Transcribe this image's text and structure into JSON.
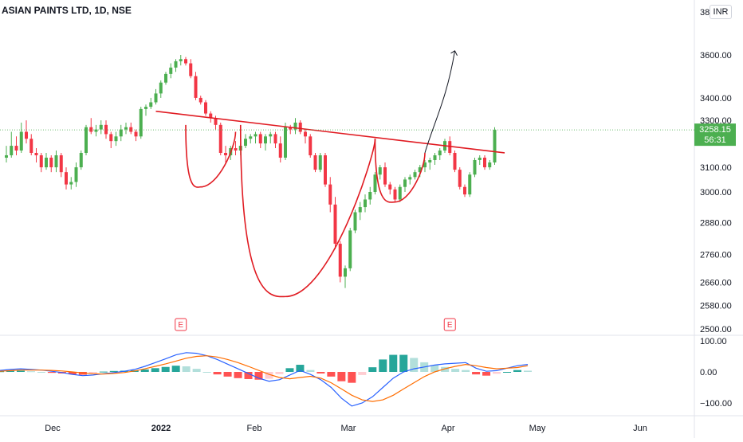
{
  "header": {
    "title": "ASIAN PAINTS LTD, 1D, NSE",
    "currency": "INR"
  },
  "price_badge": {
    "price": "3258.15",
    "countdown": "56:31",
    "color": "#4caf50"
  },
  "earnings_marker": "E",
  "colors": {
    "up": "#4caf50",
    "down": "#f23645",
    "pattern": "#e01b22",
    "macd": "#2962ff",
    "signal": "#ff6d00"
  },
  "chart_data": [
    {
      "type": "candlestick",
      "title": "ASIAN PAINTS LTD, 1D, NSE",
      "x_labels": [
        "Dec",
        "2022",
        "Feb",
        "Mar",
        "Apr",
        "May",
        "Jun"
      ],
      "y_ticks": [
        2500,
        2580,
        2660,
        2760,
        2880,
        3000,
        3100,
        3300,
        3400,
        3600
      ],
      "y_tick_labels": [
        "2500.00",
        "2580.00",
        "2660.00",
        "2760.00",
        "2880.00",
        "3000.00",
        "3100.00",
        "3300.00",
        "3400.00",
        "3600.00"
      ],
      "y_scale": "log",
      "ylim": [
        2480,
        3830
      ],
      "candles": [
        [
          3140,
          3190,
          3120,
          3150
        ],
        [
          3150,
          3250,
          3140,
          3190
        ],
        [
          3190,
          3230,
          3150,
          3170
        ],
        [
          3170,
          3290,
          3160,
          3250
        ],
        [
          3250,
          3300,
          3200,
          3220
        ],
        [
          3220,
          3240,
          3150,
          3160
        ],
        [
          3160,
          3180,
          3120,
          3150
        ],
        [
          3150,
          3160,
          3080,
          3100
        ],
        [
          3100,
          3160,
          3090,
          3140
        ],
        [
          3140,
          3150,
          3080,
          3100
        ],
        [
          3100,
          3170,
          3080,
          3150
        ],
        [
          3150,
          3160,
          3060,
          3080
        ],
        [
          3080,
          3100,
          3010,
          3030
        ],
        [
          3030,
          3060,
          3010,
          3040
        ],
        [
          3040,
          3120,
          3020,
          3100
        ],
        [
          3100,
          3170,
          3090,
          3160
        ],
        [
          3160,
          3280,
          3150,
          3270
        ],
        [
          3270,
          3310,
          3240,
          3250
        ],
        [
          3250,
          3280,
          3230,
          3260
        ],
        [
          3260,
          3300,
          3240,
          3280
        ],
        [
          3280,
          3300,
          3220,
          3240
        ],
        [
          3240,
          3250,
          3180,
          3210
        ],
        [
          3210,
          3250,
          3190,
          3230
        ],
        [
          3230,
          3280,
          3210,
          3260
        ],
        [
          3260,
          3290,
          3240,
          3270
        ],
        [
          3270,
          3290,
          3240,
          3250
        ],
        [
          3250,
          3260,
          3210,
          3230
        ],
        [
          3230,
          3360,
          3220,
          3350
        ],
        [
          3350,
          3370,
          3320,
          3360
        ],
        [
          3360,
          3400,
          3350,
          3380
        ],
        [
          3380,
          3440,
          3370,
          3420
        ],
        [
          3420,
          3480,
          3400,
          3470
        ],
        [
          3470,
          3520,
          3460,
          3510
        ],
        [
          3510,
          3560,
          3490,
          3540
        ],
        [
          3540,
          3580,
          3520,
          3570
        ],
        [
          3570,
          3600,
          3550,
          3580
        ],
        [
          3580,
          3590,
          3550,
          3560
        ],
        [
          3560,
          3580,
          3490,
          3500
        ],
        [
          3500,
          3520,
          3390,
          3400
        ],
        [
          3400,
          3410,
          3370,
          3380
        ],
        [
          3380,
          3390,
          3320,
          3330
        ],
        [
          3330,
          3340,
          3290,
          3310
        ],
        [
          3310,
          3320,
          3260,
          3280
        ],
        [
          3280,
          3290,
          3150,
          3160
        ],
        [
          3160,
          3190,
          3120,
          3150
        ],
        [
          3150,
          3190,
          3130,
          3180
        ],
        [
          3180,
          3210,
          3150,
          3170
        ],
        [
          3170,
          3200,
          3150,
          3190
        ],
        [
          3190,
          3240,
          3180,
          3220
        ],
        [
          3220,
          3240,
          3200,
          3230
        ],
        [
          3230,
          3250,
          3200,
          3240
        ],
        [
          3240,
          3250,
          3180,
          3200
        ],
        [
          3200,
          3240,
          3170,
          3230
        ],
        [
          3230,
          3250,
          3200,
          3240
        ],
        [
          3240,
          3250,
          3180,
          3200
        ],
        [
          3200,
          3230,
          3120,
          3140
        ],
        [
          3140,
          3290,
          3130,
          3270
        ],
        [
          3270,
          3280,
          3240,
          3260
        ],
        [
          3260,
          3310,
          3240,
          3290
        ],
        [
          3290,
          3300,
          3240,
          3250
        ],
        [
          3250,
          3260,
          3200,
          3230
        ],
        [
          3230,
          3240,
          3140,
          3150
        ],
        [
          3150,
          3160,
          3080,
          3090
        ],
        [
          3090,
          3160,
          3080,
          3150
        ],
        [
          3150,
          3160,
          3020,
          3030
        ],
        [
          3030,
          3060,
          2920,
          2950
        ],
        [
          2950,
          2980,
          2780,
          2800
        ],
        [
          2800,
          2810,
          2660,
          2680
        ],
        [
          2680,
          2720,
          2640,
          2710
        ],
        [
          2710,
          2860,
          2700,
          2850
        ],
        [
          2850,
          2930,
          2840,
          2920
        ],
        [
          2920,
          2960,
          2890,
          2940
        ],
        [
          2940,
          2990,
          2920,
          2970
        ],
        [
          2970,
          3020,
          2950,
          3000
        ],
        [
          3000,
          3080,
          2990,
          3070
        ],
        [
          3070,
          3110,
          3050,
          3100
        ],
        [
          3100,
          3120,
          3020,
          3030
        ],
        [
          3030,
          3040,
          2990,
          3010
        ],
        [
          3010,
          3020,
          2960,
          2970
        ],
        [
          2970,
          3030,
          2960,
          3020
        ],
        [
          3020,
          3060,
          3000,
          3050
        ],
        [
          3050,
          3070,
          3030,
          3060
        ],
        [
          3060,
          3090,
          3050,
          3080
        ],
        [
          3080,
          3110,
          3060,
          3100
        ],
        [
          3100,
          3130,
          3080,
          3120
        ],
        [
          3120,
          3140,
          3090,
          3130
        ],
        [
          3130,
          3160,
          3110,
          3150
        ],
        [
          3150,
          3180,
          3130,
          3170
        ],
        [
          3170,
          3220,
          3160,
          3210
        ],
        [
          3210,
          3230,
          3150,
          3160
        ],
        [
          3160,
          3170,
          3080,
          3090
        ],
        [
          3090,
          3100,
          3010,
          3020
        ],
        [
          3020,
          3030,
          2980,
          2990
        ],
        [
          2990,
          3080,
          2980,
          3070
        ],
        [
          3070,
          3140,
          3060,
          3130
        ],
        [
          3130,
          3150,
          3110,
          3140
        ],
        [
          3140,
          3150,
          3090,
          3100
        ],
        [
          3100,
          3130,
          3090,
          3120
        ],
        [
          3120,
          3270,
          3110,
          3258.15
        ]
      ],
      "annotations": {
        "neckline": [
          [
            30,
            3340
          ],
          [
            100,
            3160
          ]
        ],
        "bowls": [
          {
            "from": [
              36,
              3280
            ],
            "bottom": [
              39,
              3020
            ],
            "to": [
              46,
              3250
            ]
          },
          {
            "from": [
              47,
              3280
            ],
            "bottom": [
              56,
              2610
            ],
            "to": [
              74,
              3220
            ]
          },
          {
            "from": [
              74,
              3220
            ],
            "bottom": [
              78,
              2960
            ],
            "to": [
              84,
              3160
            ]
          }
        ],
        "target_arrow": [
          [
            84,
            3160
          ],
          [
            90,
            3620
          ]
        ],
        "earnings_at": [
          35,
          89
        ]
      },
      "last_price": 3258.15
    },
    {
      "type": "line",
      "title": "",
      "y_ticks": [
        100,
        0,
        -100
      ],
      "y_tick_labels": [
        "100.00",
        "0.00",
        "−100.00"
      ],
      "ylim": [
        -125,
        110
      ],
      "series": [
        {
          "role": "macd",
          "values": [
            5,
            8,
            10,
            8,
            6,
            2,
            -2,
            -8,
            -12,
            -10,
            -6,
            -2,
            2,
            8,
            18,
            30,
            42,
            55,
            62,
            60,
            52,
            40,
            25,
            10,
            -5,
            -20,
            -30,
            -25,
            -10,
            5,
            -8,
            -25,
            -50,
            -85,
            -110,
            -100,
            -80,
            -50,
            -20,
            0,
            10,
            16,
            22,
            26,
            28,
            30,
            12,
            2,
            4,
            12,
            20,
            24
          ]
        },
        {
          "role": "signal",
          "values": [
            2,
            4,
            6,
            6,
            6,
            5,
            3,
            0,
            -3,
            -6,
            -7,
            -5,
            -2,
            3,
            10,
            18,
            26,
            35,
            44,
            50,
            52,
            48,
            40,
            30,
            18,
            5,
            -8,
            -18,
            -22,
            -18,
            -14,
            -20,
            -35,
            -55,
            -75,
            -90,
            -95,
            -90,
            -75,
            -55,
            -35,
            -15,
            0,
            10,
            18,
            24,
            20,
            14,
            10,
            12,
            14,
            20
          ]
        }
      ],
      "histogram": [
        2,
        4,
        4,
        2,
        0,
        -3,
        -5,
        -8,
        -9,
        -4,
        1,
        3,
        4,
        5,
        8,
        12,
        16,
        20,
        18,
        10,
        0,
        -8,
        -15,
        -20,
        -23,
        -25,
        -22,
        -7,
        12,
        23,
        6,
        -5,
        -15,
        -30,
        -35,
        -10,
        15,
        40,
        55,
        55,
        45,
        31,
        22,
        16,
        10,
        6,
        -8,
        -12,
        -6,
        0,
        6,
        4
      ]
    }
  ]
}
